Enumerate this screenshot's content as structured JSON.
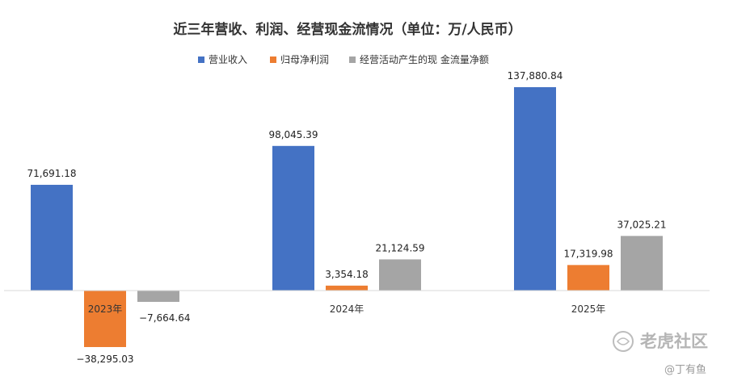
{
  "chart_data": {
    "type": "bar",
    "title": "近三年营收、利润、经营现金流情况（单位：万/人民币）",
    "categories": [
      "2023年",
      "2024年",
      "2025年"
    ],
    "series": [
      {
        "name": "营业收入",
        "color": "#4472C4",
        "values": [
          71691.18,
          98045.39,
          137880.84
        ]
      },
      {
        "name": "归母净利润",
        "color": "#ED7D31",
        "values": [
          -38295.03,
          3354.18,
          17319.98
        ]
      },
      {
        "name": "经营活动产生的现 金流量净额",
        "color": "#A5A5A5",
        "values": [
          -7664.64,
          21124.59,
          37025.21
        ]
      }
    ],
    "data_labels": [
      [
        "71,691.18",
        "98,045.39",
        "137,880.84"
      ],
      [
        "−38,295.03",
        "3,354.18",
        "17,319.98"
      ],
      [
        "−7,664.64",
        "21,124.59",
        "37,025.21"
      ]
    ],
    "legend_position": "top",
    "grid": false
  },
  "watermark": {
    "brand": "老虎社区",
    "user": "@丁有鱼"
  }
}
